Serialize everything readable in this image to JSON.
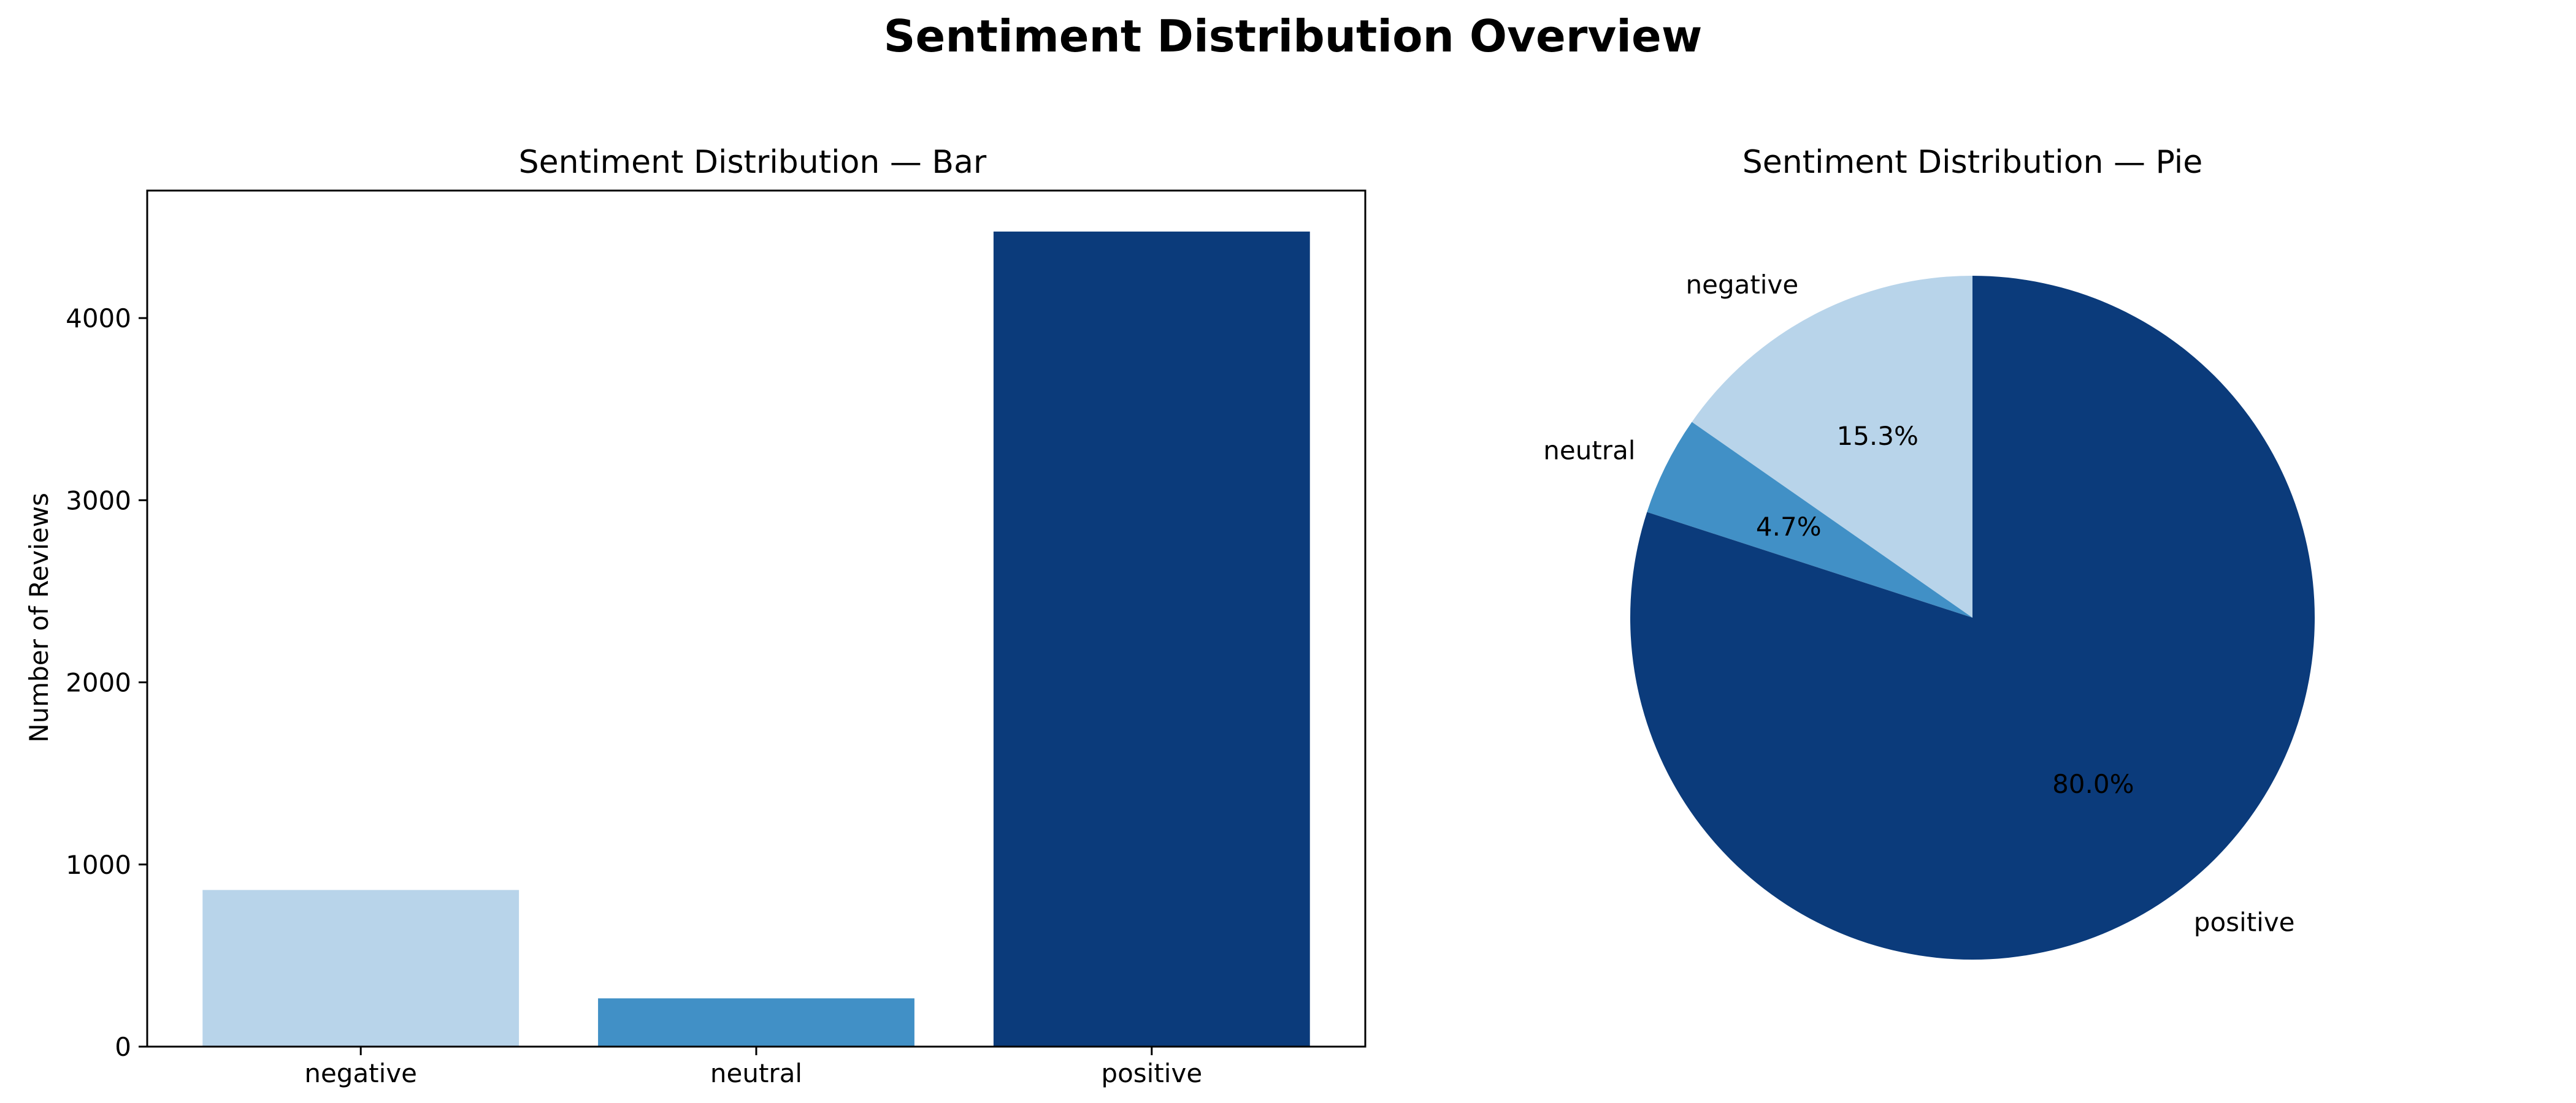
{
  "figure": {
    "suptitle": "Sentiment Distribution Overview"
  },
  "chart_data": [
    {
      "type": "bar",
      "title": "Sentiment Distribution — Bar",
      "xlabel": "",
      "ylabel": "Number of Reviews",
      "categories": [
        "negative",
        "neutral",
        "positive"
      ],
      "values": [
        860,
        265,
        4475
      ],
      "colors": [
        "#b8d4ea",
        "#4190c6",
        "#0b3b7b"
      ],
      "ylim": [
        0,
        4700
      ],
      "yticks": [
        0,
        1000,
        2000,
        3000,
        4000
      ],
      "grid": false,
      "legend": "none"
    },
    {
      "type": "pie",
      "title": "Sentiment Distribution — Pie",
      "labels": [
        "negative",
        "neutral",
        "positive"
      ],
      "percentages": [
        15.3,
        4.7,
        80.0
      ],
      "pct_labels": [
        "15.3%",
        "4.7%",
        "80.0%"
      ],
      "colors": [
        "#b8d4ea",
        "#4190c6",
        "#0b3b7b"
      ],
      "start_angle_deg": 90,
      "direction": "counterclockwise",
      "legend": "none"
    }
  ]
}
